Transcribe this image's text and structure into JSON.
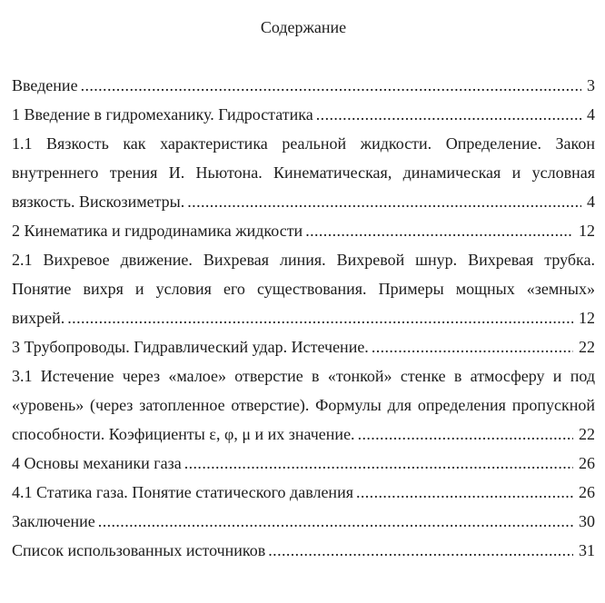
{
  "page": {
    "title": "Содержание",
    "text_color": "#1c1c1c",
    "background_color": "#ffffff"
  },
  "toc": {
    "entries": [
      {
        "lines": [
          "Введение"
        ],
        "page": "3"
      },
      {
        "lines": [
          "1 Введение в гидромеханику. Гидростатика"
        ],
        "page": "4"
      },
      {
        "lines": [
          "1.1 Вязкость как характеристика реальной жидкости. Определение. Закон",
          "внутреннего трения И. Ньютона. Кинематическая, динамическая и условная",
          "вязкость. Вискозиметры."
        ],
        "page": "4"
      },
      {
        "lines": [
          "2 Кинематика и гидродинамика жидкости"
        ],
        "page": "12"
      },
      {
        "lines": [
          "2.1 Вихревое движение. Вихревая линия. Вихревой шнур. Вихревая трубка.",
          "Понятие вихря и условия его существования. Примеры мощных «земных»",
          "вихрей."
        ],
        "page": "12"
      },
      {
        "lines": [
          "3 Трубопроводы. Гидравлический удар. Истечение."
        ],
        "page": "22"
      },
      {
        "lines": [
          "3.1 Истечение через «малое» отверстие в «тонкой» стенке в атмосферу и под",
          "«уровень» (через затопленное отверстие). Формулы для определения пропускной",
          "способности. Коэфициенты ε, φ, μ и их значение."
        ],
        "page": "22"
      },
      {
        "lines": [
          "4 Основы механики газа"
        ],
        "page": "26"
      },
      {
        "lines": [
          "4.1 Статика газа. Понятие статического давления"
        ],
        "page": "26"
      },
      {
        "lines": [
          "Заключение"
        ],
        "page": "30"
      },
      {
        "lines": [
          "Список использованных источников"
        ],
        "page": "31"
      }
    ]
  }
}
